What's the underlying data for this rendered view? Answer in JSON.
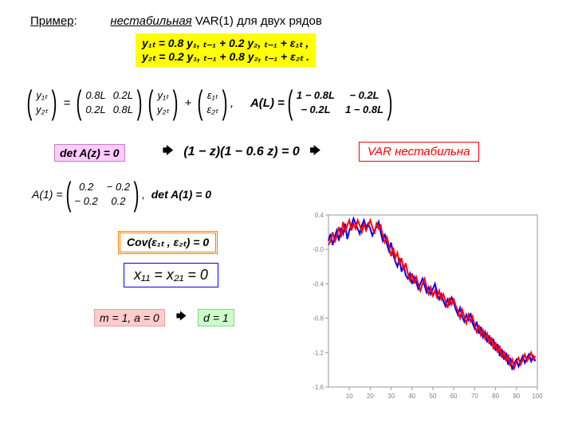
{
  "title": {
    "example": "Пример",
    "colon": ":",
    "unstable": "нестабильная",
    "var_tail": " VAR(1) для двух рядов"
  },
  "equations_box": {
    "line1": "y₁ₜ = 0.8 y₁, ₜ₋₁ + 0.2 y₂, ₜ₋₁ + ε₁ₜ ,",
    "line2": "y₂ₜ = 0.2 y₁, ₜ₋₁ + 0.8 y₂, ₜ₋₁ + ε₂ₜ ."
  },
  "matrix": {
    "y1": "y₁ₜ",
    "y2": "y₂ₜ",
    "a11": "0.8L",
    "a12": "0.2L",
    "a21": "0.2L",
    "a22": "0.8L",
    "e1": "ε₁ₜ",
    "e2": "ε₂ₜ",
    "AL": "A(L) = ",
    "b11": "1 − 0.8L",
    "b12": "− 0.2L",
    "b21": "− 0.2L",
    "b22": "1 − 0.8L"
  },
  "det": {
    "label": "det A(z) = 0",
    "roots": "(1 − z)(1 − 0.6 z) = 0",
    "unstable": "VAR нестабильна"
  },
  "A1": {
    "lhs": "A(1) = ",
    "c11": "0.2",
    "c12": "− 0.2",
    "c21": "− 0.2",
    "c22": "0.2",
    "comma": ",",
    "det1": "det A(1) = 0"
  },
  "cov": "Cov(ε₁ₜ , ε₂ₜ) = 0",
  "x_eq": "x₁₁ = x₂₁ = 0",
  "ma": "m = 1, a = 0",
  "implies": "🡆",
  "d1": "d = 1",
  "chart": {
    "type": "line",
    "background": "#ffffff",
    "border_color": "#999999",
    "grid_color": "#dddddd",
    "line_width": 2.0,
    "xlim": [
      0,
      100
    ],
    "xtick_step": 10,
    "ylim": [
      -1.6,
      0.4
    ],
    "ytick_step": 0.4,
    "label_fontsize": 8,
    "label_color": "#808080",
    "series": [
      {
        "color": "#0000ff",
        "data": [
          0.1,
          0.18,
          0.05,
          0.15,
          0.22,
          0.1,
          0.25,
          0.18,
          0.3,
          0.12,
          0.22,
          0.28,
          0.36,
          0.3,
          0.24,
          0.18,
          0.28,
          0.34,
          0.26,
          0.3,
          0.24,
          0.16,
          0.22,
          0.26,
          0.32,
          0.2,
          0.1,
          0.18,
          0.06,
          -0.02,
          0.08,
          -0.06,
          -0.14,
          -0.2,
          -0.1,
          -0.26,
          -0.18,
          -0.3,
          -0.34,
          -0.28,
          -0.4,
          -0.32,
          -0.38,
          -0.46,
          -0.4,
          -0.34,
          -0.42,
          -0.5,
          -0.44,
          -0.52,
          -0.46,
          -0.4,
          -0.5,
          -0.58,
          -0.52,
          -0.6,
          -0.66,
          -0.58,
          -0.64,
          -0.56,
          -0.62,
          -0.7,
          -0.76,
          -0.68,
          -0.78,
          -0.84,
          -0.76,
          -0.82,
          -0.74,
          -0.86,
          -0.92,
          -0.84,
          -0.98,
          -0.9,
          -1.02,
          -0.96,
          -1.08,
          -1.0,
          -1.12,
          -1.04,
          -1.18,
          -1.1,
          -1.24,
          -1.16,
          -1.28,
          -1.2,
          -1.34,
          -1.26,
          -1.4,
          -1.32,
          -1.28,
          -1.36,
          -1.3,
          -1.24,
          -1.32,
          -1.26,
          -1.22,
          -1.3,
          -1.24,
          -1.3
        ]
      },
      {
        "color": "#ff0000",
        "data": [
          0.05,
          0.1,
          0.2,
          0.08,
          0.16,
          0.26,
          0.14,
          0.32,
          0.2,
          0.28,
          0.34,
          0.22,
          0.3,
          0.24,
          0.34,
          0.28,
          0.2,
          0.3,
          0.22,
          0.28,
          0.34,
          0.26,
          0.18,
          0.3,
          0.24,
          0.28,
          0.16,
          0.08,
          0.14,
          0.04,
          -0.08,
          0.02,
          -0.1,
          -0.04,
          -0.18,
          -0.1,
          -0.24,
          -0.16,
          -0.28,
          -0.36,
          -0.28,
          -0.4,
          -0.32,
          -0.4,
          -0.48,
          -0.4,
          -0.34,
          -0.44,
          -0.52,
          -0.44,
          -0.54,
          -0.48,
          -0.56,
          -0.48,
          -0.58,
          -0.52,
          -0.6,
          -0.68,
          -0.56,
          -0.64,
          -0.58,
          -0.66,
          -0.72,
          -0.8,
          -0.7,
          -0.78,
          -0.86,
          -0.76,
          -0.84,
          -0.78,
          -0.88,
          -0.96,
          -0.88,
          -1.0,
          -0.94,
          -1.04,
          -0.98,
          -1.1,
          -1.02,
          -1.16,
          -1.08,
          -1.2,
          -1.12,
          -1.26,
          -1.18,
          -1.3,
          -1.22,
          -1.36,
          -1.28,
          -1.38,
          -1.3,
          -1.26,
          -1.34,
          -1.28,
          -1.22,
          -1.3,
          -1.26,
          -1.2,
          -1.28,
          -1.24
        ]
      }
    ]
  }
}
